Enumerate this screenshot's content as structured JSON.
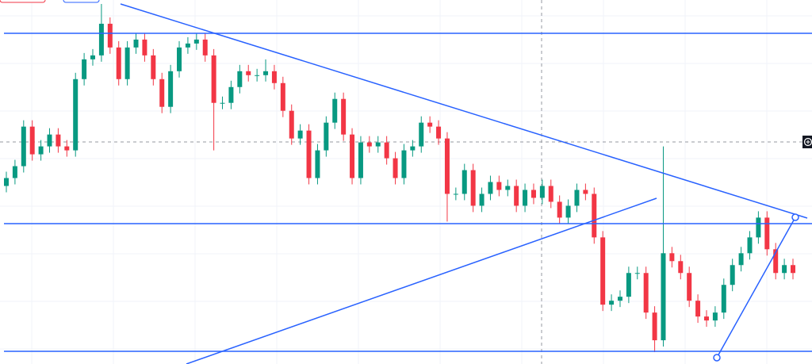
{
  "chart_data": {
    "type": "candlestick",
    "ylim": [
      0,
      460
    ],
    "up_color": "#089981",
    "down_color": "#f23645",
    "open": [
      225,
      235,
      250,
      300,
      265,
      275,
      290,
      275,
      270,
      360,
      385,
      390,
      430,
      400,
      360,
      400,
      410,
      390,
      360,
      325,
      370,
      400,
      405,
      410,
      390,
      330,
      330,
      350,
      370,
      365,
      365,
      370,
      355,
      320,
      285,
      295,
      235,
      270,
      305,
      335,
      290,
      235,
      280,
      275,
      280,
      260,
      235,
      270,
      275,
      305,
      300,
      285,
      215,
      215,
      245,
      200,
      215,
      230,
      220,
      225,
      200,
      220,
      210,
      225,
      205,
      185,
      200,
      220,
      215,
      160,
      75,
      80,
      85,
      115,
      115,
      65,
      30,
      140,
      130,
      115,
      80,
      60,
      55,
      65,
      100,
      125,
      140,
      160,
      185,
      145,
      115,
      125
    ],
    "high": [
      243,
      258,
      308,
      308,
      283,
      298,
      298,
      283,
      368,
      393,
      398,
      455,
      438,
      408,
      408,
      418,
      418,
      398,
      368,
      378,
      408,
      413,
      418,
      418,
      398,
      338,
      358,
      378,
      378,
      373,
      385,
      378,
      363,
      328,
      303,
      303,
      278,
      313,
      343,
      343,
      298,
      288,
      288,
      288,
      288,
      268,
      278,
      283,
      313,
      313,
      308,
      293,
      223,
      253,
      253,
      223,
      238,
      238,
      233,
      233,
      228,
      228,
      233,
      233,
      213,
      208,
      228,
      228,
      223,
      168,
      88,
      93,
      123,
      123,
      123,
      73,
      275,
      148,
      138,
      123,
      88,
      68,
      73,
      108,
      133,
      148,
      168,
      193,
      193,
      153,
      133,
      133
    ],
    "low": [
      217,
      227,
      242,
      257,
      257,
      267,
      267,
      262,
      262,
      352,
      377,
      382,
      392,
      352,
      352,
      392,
      382,
      352,
      317,
      317,
      362,
      392,
      397,
      382,
      270,
      322,
      322,
      342,
      357,
      357,
      357,
      347,
      312,
      277,
      277,
      227,
      227,
      262,
      297,
      282,
      227,
      227,
      267,
      267,
      252,
      227,
      227,
      262,
      267,
      292,
      277,
      180,
      207,
      207,
      192,
      192,
      207,
      212,
      212,
      192,
      192,
      202,
      202,
      197,
      177,
      177,
      192,
      207,
      152,
      67,
      67,
      72,
      77,
      107,
      57,
      15,
      22,
      122,
      107,
      72,
      52,
      47,
      47,
      57,
      92,
      117,
      132,
      152,
      137,
      107,
      107,
      107
    ],
    "close": [
      235,
      250,
      300,
      265,
      275,
      290,
      275,
      270,
      360,
      385,
      390,
      430,
      400,
      360,
      400,
      410,
      390,
      360,
      325,
      370,
      400,
      405,
      410,
      390,
      330,
      330,
      350,
      370,
      365,
      365,
      370,
      355,
      320,
      285,
      295,
      235,
      270,
      305,
      335,
      290,
      235,
      280,
      275,
      280,
      260,
      235,
      270,
      275,
      305,
      300,
      285,
      215,
      215,
      245,
      200,
      215,
      230,
      220,
      225,
      200,
      220,
      210,
      225,
      205,
      185,
      200,
      220,
      215,
      160,
      75,
      80,
      85,
      115,
      115,
      65,
      30,
      140,
      130,
      115,
      80,
      60,
      55,
      65,
      100,
      125,
      140,
      160,
      185,
      145,
      115,
      125,
      115
    ]
  }
}
